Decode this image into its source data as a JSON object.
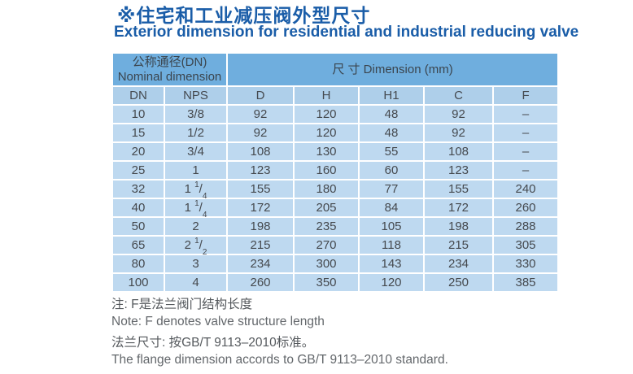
{
  "page": {
    "title_zh": "※住宅和工业减压阀外型尺寸",
    "title_en": "Exterior dimension for residential and industrial reducing valve"
  },
  "colors": {
    "title_blue": "#1a5da8",
    "header_band": "#6faede",
    "subheader_band": "#aecfea",
    "data_row": "#bed9f0",
    "gridline": "#ffffff",
    "table_text": "#45494e"
  },
  "table": {
    "group_headers": {
      "nominal_zh": "公称通径(DN)",
      "nominal_en": "Nominal dimension",
      "dimension": "尺 寸 Dimension  (mm)"
    },
    "columns": [
      "DN",
      "NPS",
      "D",
      "H",
      "H1",
      "C",
      "F"
    ],
    "rows": [
      [
        "10",
        "3/8",
        "92",
        "120",
        "48",
        "92",
        "–"
      ],
      [
        "15",
        "1/2",
        "92",
        "120",
        "48",
        "92",
        "–"
      ],
      [
        "20",
        "3/4",
        "108",
        "130",
        "55",
        "108",
        "–"
      ],
      [
        "25",
        "1",
        "123",
        "160",
        "60",
        "123",
        "–"
      ],
      [
        "32",
        "1 1/4",
        "155",
        "180",
        "77",
        "155",
        "240"
      ],
      [
        "40",
        "1 1/4",
        "172",
        "205",
        "84",
        "172",
        "260"
      ],
      [
        "50",
        "2",
        "198",
        "235",
        "105",
        "198",
        "288"
      ],
      [
        "65",
        "2 1/2",
        "215",
        "270",
        "118",
        "215",
        "305"
      ],
      [
        "80",
        "3",
        "234",
        "300",
        "143",
        "234",
        "330"
      ],
      [
        "100",
        "4",
        "260",
        "350",
        "120",
        "250",
        "385"
      ]
    ]
  },
  "notes": {
    "note_zh": "注: F是法兰阀门结构长度",
    "note_en": "Note: F denotes valve structure length",
    "flange_zh": "法兰尺寸: 按GB/T 9113–2010标准。",
    "flange_en": "The flange dimension accords to GB/T 9113–2010 standard."
  }
}
